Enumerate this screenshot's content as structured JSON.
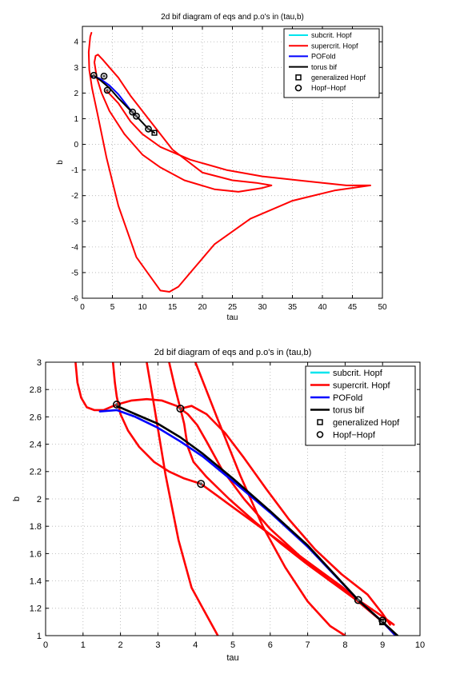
{
  "chart_data": [
    {
      "type": "line",
      "title": "2d bif diagram of eqs and p.o's in (tau,b)",
      "xlabel": "tau",
      "ylabel": "b",
      "xlim": [
        0,
        50
      ],
      "ylim": [
        -6,
        4.6
      ],
      "xticks": [
        "0",
        "5",
        "10",
        "15",
        "20",
        "25",
        "30",
        "35",
        "40",
        "45",
        "50"
      ],
      "yticks": [
        "-6",
        "-5",
        "-4",
        "-3",
        "-2",
        "-1",
        "0",
        "1",
        "2",
        "3",
        "4"
      ],
      "grid": true,
      "legend": {
        "placement": "top-right",
        "entries": [
          {
            "label": "subcrit. Hopf",
            "color": "#00e5ee",
            "marker": "line"
          },
          {
            "label": "supercrit. Hopf",
            "color": "#ff0000",
            "marker": "line"
          },
          {
            "label": "POFold",
            "color": "#0000ff",
            "marker": "line"
          },
          {
            "label": "torus bif",
            "color": "#000000",
            "marker": "line"
          },
          {
            "label": "generalized Hopf",
            "color": "#000000",
            "marker": "square"
          },
          {
            "label": "Hopf−Hopf",
            "color": "#000000",
            "marker": "circle"
          }
        ]
      },
      "series": [
        {
          "name": "supercrit. Hopf",
          "color": "#ff0000",
          "x": [
            1.5,
            1.3,
            1.05,
            1.15,
            1.6,
            2.5,
            4.0,
            6.0,
            9.0,
            13.0,
            14.5,
            16.0,
            18.0,
            22.0,
            28.0,
            35.0,
            42.0,
            48.0,
            44.0,
            38.0,
            30.0,
            24.0,
            18.0,
            13.0,
            10.0,
            8.0,
            6.0,
            4.0
          ],
          "y": [
            4.35,
            4.2,
            3.6,
            2.9,
            2.2,
            1.2,
            -0.5,
            -2.4,
            -4.4,
            -5.7,
            -5.75,
            -5.55,
            -5.0,
            -3.9,
            -2.9,
            -2.2,
            -1.8,
            -1.6,
            -1.6,
            -1.45,
            -1.25,
            -1.0,
            -0.6,
            -0.1,
            0.4,
            0.9,
            1.6,
            2.1
          ]
        },
        {
          "name": "supercrit. Hopf",
          "color": "#ff0000",
          "x": [
            2.0,
            2.2,
            2.6,
            3.4,
            4.5,
            6.0,
            8.0,
            11.0,
            15.0,
            20.0,
            25.0,
            29.0,
            31.5,
            30.0,
            26.0,
            22.0,
            17.0,
            13.0,
            10.0,
            7.0,
            4.5,
            3.2,
            2.4,
            2.0
          ],
          "y": [
            3.2,
            3.45,
            3.5,
            3.3,
            3.0,
            2.6,
            1.9,
            1.0,
            -0.2,
            -1.1,
            -1.4,
            -1.5,
            -1.6,
            -1.7,
            -1.85,
            -1.75,
            -1.4,
            -0.9,
            -0.4,
            0.4,
            1.3,
            2.0,
            2.6,
            3.2
          ]
        },
        {
          "name": "POFold",
          "color": "#0000ff",
          "x": [
            1.5,
            1.9,
            3.0,
            4.5,
            6.0,
            8.3,
            9.0,
            9.4
          ],
          "y": [
            2.65,
            2.66,
            2.55,
            2.3,
            1.95,
            1.25,
            1.1,
            1.0
          ]
        },
        {
          "name": "torus bif",
          "color": "#000000",
          "x": [
            1.5,
            1.9,
            3.0,
            4.5,
            6.0,
            8.3,
            9.0,
            10.0,
            11.0,
            12.0
          ],
          "y": [
            2.65,
            2.68,
            2.5,
            2.2,
            1.8,
            1.25,
            1.1,
            0.85,
            0.6,
            0.45
          ]
        }
      ],
      "markers": [
        {
          "type": "circle",
          "x": 1.9,
          "y": 2.69
        },
        {
          "type": "circle",
          "x": 3.6,
          "y": 2.66
        },
        {
          "type": "circle",
          "x": 4.15,
          "y": 2.11
        },
        {
          "type": "circle",
          "x": 8.35,
          "y": 1.26
        },
        {
          "type": "circle",
          "x": 9.0,
          "y": 1.1
        },
        {
          "type": "circle",
          "x": 11.0,
          "y": 0.6
        },
        {
          "type": "square",
          "x": 12.0,
          "y": 0.45
        }
      ]
    },
    {
      "type": "line",
      "title": "2d bif diagram of eqs and p.o's in (tau,b)",
      "xlabel": "tau",
      "ylabel": "b",
      "xlim": [
        0,
        10
      ],
      "ylim": [
        1,
        3
      ],
      "xticks": [
        "0",
        "1",
        "2",
        "3",
        "4",
        "5",
        "6",
        "7",
        "8",
        "9",
        "10"
      ],
      "yticks": [
        "1",
        "1.2",
        "1.4",
        "1.6",
        "1.8",
        "2",
        "2.2",
        "2.4",
        "2.6",
        "2.8",
        "3"
      ],
      "grid": true,
      "legend": {
        "placement": "top-right",
        "entries": [
          {
            "label": "subcrit. Hopf",
            "color": "#00e5ee",
            "marker": "line"
          },
          {
            "label": "supercrit. Hopf",
            "color": "#ff0000",
            "marker": "line"
          },
          {
            "label": "POFold",
            "color": "#0000ff",
            "marker": "line"
          },
          {
            "label": "torus bif",
            "color": "#000000",
            "marker": "line"
          },
          {
            "label": "generalized Hopf",
            "color": "#000000",
            "marker": "square"
          },
          {
            "label": "Hopf−Hopf",
            "color": "#000000",
            "marker": "circle"
          }
        ]
      },
      "series": [
        {
          "name": "supercrit. Hopf",
          "color": "#ff0000",
          "x": [
            0.8,
            0.85,
            0.95,
            1.1,
            1.3,
            1.55,
            1.9,
            2.3,
            2.7,
            3.1,
            3.5,
            3.8,
            4.05,
            4.3,
            4.7,
            5.3,
            6.0,
            6.8,
            7.6,
            8.3,
            9.0,
            9.35
          ],
          "y": [
            3.0,
            2.85,
            2.74,
            2.67,
            2.65,
            2.65,
            2.69,
            2.72,
            2.73,
            2.72,
            2.68,
            2.62,
            2.54,
            2.42,
            2.22,
            2.0,
            1.78,
            1.58,
            1.4,
            1.26,
            1.1,
            1.0
          ]
        },
        {
          "name": "supercrit. Hopf",
          "color": "#ff0000",
          "x": [
            1.8,
            1.85,
            1.9,
            2.0,
            2.2,
            2.5,
            2.9,
            3.3,
            3.7,
            4.15,
            4.6,
            5.0,
            5.4,
            5.9,
            6.5,
            7.2,
            7.9,
            8.35,
            9.0,
            9.3
          ],
          "y": [
            3.0,
            2.85,
            2.75,
            2.62,
            2.5,
            2.38,
            2.27,
            2.2,
            2.15,
            2.11,
            2.02,
            1.94,
            1.86,
            1.76,
            1.64,
            1.5,
            1.36,
            1.26,
            1.14,
            1.08
          ]
        },
        {
          "name": "supercrit. Hopf",
          "color": "#ff0000",
          "x": [
            2.7,
            2.9,
            3.2,
            3.55,
            3.9,
            4.3,
            4.6
          ],
          "y": [
            3.0,
            2.68,
            2.18,
            1.7,
            1.35,
            1.15,
            1.0
          ]
        },
        {
          "name": "supercrit. Hopf",
          "color": "#ff0000",
          "x": [
            3.3,
            3.45,
            3.6,
            3.7,
            3.75,
            3.8,
            3.95,
            4.3,
            4.9,
            5.6,
            6.3,
            7.0,
            7.6,
            8.1,
            8.35
          ],
          "y": [
            3.0,
            2.82,
            2.66,
            2.55,
            2.46,
            2.38,
            2.27,
            2.16,
            2.0,
            1.83,
            1.67,
            1.52,
            1.4,
            1.31,
            1.26
          ]
        },
        {
          "name": "supercrit. Hopf",
          "color": "#ff0000",
          "x": [
            4.0,
            4.6,
            5.2,
            5.8,
            6.4,
            7.0,
            7.6,
            8.0
          ],
          "y": [
            3.0,
            2.58,
            2.17,
            1.8,
            1.5,
            1.25,
            1.07,
            1.0
          ]
        },
        {
          "name": "supercrit. Hopf",
          "color": "#ff0000",
          "x": [
            3.6,
            3.9,
            4.3,
            4.8,
            5.3,
            5.9,
            6.5,
            7.2,
            7.9,
            8.6,
            9.0,
            9.2
          ],
          "y": [
            2.66,
            2.68,
            2.62,
            2.48,
            2.3,
            2.07,
            1.85,
            1.63,
            1.45,
            1.3,
            1.16,
            1.08
          ]
        },
        {
          "name": "POFold",
          "color": "#0000ff",
          "x": [
            1.45,
            1.9,
            2.4,
            3.0,
            3.6,
            4.2,
            5.0,
            6.0,
            7.0,
            8.35,
            9.0,
            9.35
          ],
          "y": [
            2.64,
            2.65,
            2.6,
            2.52,
            2.42,
            2.31,
            2.13,
            1.9,
            1.65,
            1.26,
            1.1,
            1.0
          ]
        },
        {
          "name": "torus bif",
          "color": "#000000",
          "x": [
            1.9,
            2.4,
            3.0,
            3.6,
            4.2,
            5.0,
            6.0,
            7.0,
            8.35,
            9.0,
            9.4
          ],
          "y": [
            2.68,
            2.62,
            2.55,
            2.45,
            2.33,
            2.15,
            1.91,
            1.66,
            1.26,
            1.1,
            1.0
          ]
        }
      ],
      "markers": [
        {
          "type": "circle",
          "x": 1.9,
          "y": 2.69
        },
        {
          "type": "circle",
          "x": 3.6,
          "y": 2.66
        },
        {
          "type": "circle",
          "x": 4.15,
          "y": 2.11
        },
        {
          "type": "circle",
          "x": 8.35,
          "y": 1.26
        },
        {
          "type": "circle",
          "x": 9.0,
          "y": 1.11
        },
        {
          "type": "square",
          "x": 9.0,
          "y": 1.1
        }
      ]
    }
  ]
}
